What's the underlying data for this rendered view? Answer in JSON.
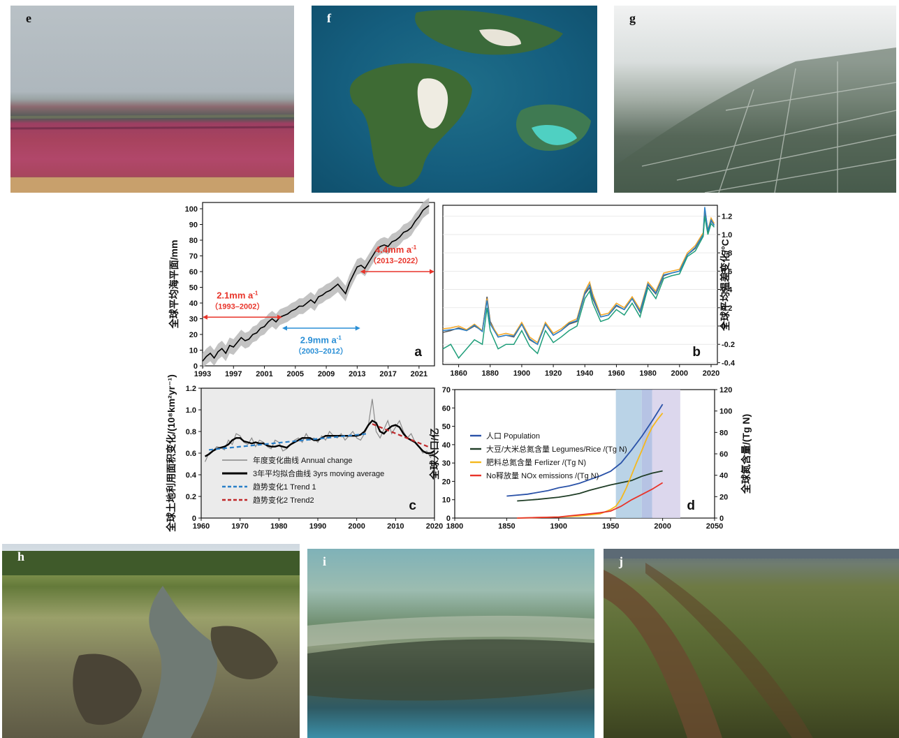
{
  "photos": [
    {
      "id": "e",
      "label": "e"
    },
    {
      "id": "f",
      "label": "f"
    },
    {
      "id": "g",
      "label": "g"
    },
    {
      "id": "h",
      "label": "h"
    },
    {
      "id": "i",
      "label": "i"
    },
    {
      "id": "j",
      "label": "j"
    }
  ],
  "colors": {
    "black": "#111111",
    "gray_band": "#b8b8b8",
    "red": "#e8342a",
    "blue": "#2a8fd6",
    "panel_c_bg": "#ebebeb",
    "navy": "#2a52a8",
    "dark_green": "#1f3d26",
    "yellow": "#f5b81c",
    "band_blue": "#aecbe3",
    "band_purple": "#cfc9e6"
  },
  "chart_data": [
    {
      "panel": "a",
      "type": "line",
      "ylabel": "全球平均海平面/mm",
      "xlim": [
        1993,
        2023
      ],
      "ylim": [
        0,
        104
      ],
      "xticks": [
        1993,
        1997,
        2001,
        2005,
        2009,
        2013,
        2017,
        2021
      ],
      "yticks": [
        0,
        10,
        20,
        30,
        40,
        50,
        60,
        70,
        80,
        90,
        100
      ],
      "series": [
        {
          "x": [
            1993,
            1993.5,
            1994,
            1994.5,
            1995,
            1995.5,
            1996,
            1996.5,
            1997,
            1997.5,
            1998,
            1998.5,
            1999,
            1999.5,
            2000,
            2000.5,
            2001,
            2001.5,
            2002,
            2002.5,
            2003,
            2003.5,
            2004,
            2004.5,
            2005,
            2005.5,
            2006,
            2006.5,
            2007,
            2007.5,
            2008,
            2008.5,
            2009,
            2009.5,
            2010,
            2010.5,
            2011,
            2011.5,
            2012,
            2012.5,
            2013,
            2013.5,
            2014,
            2014.5,
            2015,
            2015.5,
            2016,
            2016.5,
            2017,
            2017.5,
            2018,
            2018.5,
            2019,
            2019.5,
            2020,
            2020.5,
            2021,
            2021.5,
            2022,
            2022.3
          ],
          "values": [
            3,
            6,
            8,
            5,
            9,
            11,
            8,
            13,
            12,
            15,
            18,
            16,
            17,
            20,
            21,
            24,
            25,
            28,
            30,
            28,
            31,
            32,
            33,
            35,
            36,
            38,
            38,
            40,
            42,
            40,
            44,
            45,
            47,
            48,
            50,
            52,
            49,
            46,
            53,
            58,
            63,
            64,
            62,
            66,
            70,
            74,
            76,
            77,
            76,
            79,
            80,
            82,
            85,
            86,
            88,
            92,
            95,
            99,
            101,
            102
          ]
        }
      ],
      "annotations": [
        {
          "text": "2.1mm a",
          "superscript": "-1",
          "period": "（1993–2002）",
          "color": "#e8342a",
          "x_range": [
            1993,
            2003.3
          ]
        },
        {
          "text": "2.9mm a",
          "superscript": "-1",
          "period": "（2003–2012）",
          "color": "#2a8fd6",
          "x_range": [
            2003.3,
            2013.4
          ]
        },
        {
          "text": "4.4mm a",
          "superscript": "-1",
          "period": "（2013–2022）",
          "color": "#e8342a",
          "x_range": [
            2013.4,
            2023
          ]
        }
      ],
      "letter": "a"
    },
    {
      "panel": "b",
      "type": "line",
      "ylabel": "全球平均温差变化/°C",
      "xlim": [
        1850,
        2024
      ],
      "ylim": [
        -0.42,
        1.32
      ],
      "xticks": [
        1860,
        1880,
        1900,
        1920,
        1940,
        1960,
        1980,
        2000,
        2020
      ],
      "yticks": [
        -0.4,
        -0.2,
        0,
        0.2,
        0.4,
        0.6,
        0.8,
        1.0,
        1.2
      ],
      "ytick_labels": [
        "-0.4",
        "-0.2",
        "0",
        "0.2",
        "0.4",
        "0.6",
        "0.8",
        "1.0",
        "1.2"
      ],
      "grid": true,
      "x": [
        1850,
        1855,
        1860,
        1865,
        1870,
        1875,
        1878,
        1880,
        1885,
        1890,
        1895,
        1900,
        1905,
        1910,
        1915,
        1920,
        1925,
        1930,
        1935,
        1940,
        1943,
        1945,
        1950,
        1955,
        1960,
        1965,
        1970,
        1975,
        1980,
        1985,
        1990,
        1995,
        2000,
        2005,
        2010,
        2015,
        2016,
        2018,
        2020,
        2022
      ],
      "series": [
        {
          "color": "#555555",
          "values": [
            -0.07,
            -0.05,
            -0.02,
            -0.05,
            0.0,
            -0.05,
            0.32,
            0.05,
            -0.12,
            -0.1,
            -0.12,
            0.02,
            -0.15,
            -0.2,
            0.02,
            -0.1,
            -0.05,
            0.02,
            0.05,
            0.35,
            0.42,
            0.3,
            0.1,
            0.12,
            0.22,
            0.18,
            0.3,
            0.15,
            0.45,
            0.35,
            0.55,
            0.58,
            0.6,
            0.78,
            0.85,
            1.0,
            1.25,
            1.02,
            1.15,
            1.1
          ]
        },
        {
          "color": "#f5a623",
          "values": [
            -0.03,
            -0.02,
            0.0,
            -0.04,
            0.02,
            -0.05,
            0.3,
            0.03,
            -0.1,
            -0.08,
            -0.1,
            0.04,
            -0.12,
            -0.18,
            0.04,
            -0.08,
            -0.03,
            0.04,
            0.08,
            0.38,
            0.48,
            0.35,
            0.12,
            0.14,
            0.25,
            0.2,
            0.32,
            0.18,
            0.48,
            0.38,
            0.58,
            0.6,
            0.62,
            0.8,
            0.88,
            1.02,
            1.28,
            1.05,
            1.18,
            1.12
          ]
        },
        {
          "color": "#2a7fc8",
          "values": [
            -0.05,
            -0.04,
            -0.03,
            -0.05,
            0.01,
            -0.06,
            0.28,
            0.02,
            -0.12,
            -0.1,
            -0.11,
            0.02,
            -0.14,
            -0.2,
            0.02,
            -0.1,
            -0.05,
            0.03,
            0.06,
            0.36,
            0.45,
            0.32,
            0.1,
            0.12,
            0.23,
            0.18,
            0.3,
            0.16,
            0.46,
            0.36,
            0.56,
            0.58,
            0.6,
            0.78,
            0.86,
            1.0,
            1.3,
            1.04,
            1.16,
            1.1
          ]
        },
        {
          "color": "#1f9e7a",
          "values": [
            -0.25,
            -0.2,
            -0.35,
            -0.25,
            -0.15,
            -0.2,
            0.2,
            -0.05,
            -0.25,
            -0.2,
            -0.2,
            -0.05,
            -0.22,
            -0.3,
            -0.05,
            -0.18,
            -0.12,
            -0.05,
            0.0,
            0.3,
            0.38,
            0.25,
            0.05,
            0.08,
            0.18,
            0.12,
            0.25,
            0.1,
            0.42,
            0.3,
            0.52,
            0.55,
            0.57,
            0.76,
            0.82,
            0.98,
            1.2,
            1.0,
            1.12,
            1.08
          ]
        }
      ],
      "letter": "b"
    },
    {
      "panel": "c",
      "type": "line",
      "ylabel": "全球土地利用面积变化/(10⁸km²yr⁻¹)",
      "xlim": [
        1960,
        2020
      ],
      "ylim": [
        0,
        1.2
      ],
      "xticks": [
        1960,
        1970,
        1980,
        1990,
        2000,
        2010,
        2020
      ],
      "yticks": [
        0,
        0.2,
        0.4,
        0.6,
        0.8,
        1.0,
        1.2
      ],
      "ytick_labels": [
        "0",
        "0.2",
        "0.4",
        "0.6",
        "0.8",
        "1.0",
        "1.2"
      ],
      "annual": {
        "x": [
          1961,
          1962,
          1963,
          1964,
          1965,
          1966,
          1967,
          1968,
          1969,
          1970,
          1971,
          1972,
          1973,
          1974,
          1975,
          1976,
          1977,
          1978,
          1979,
          1980,
          1981,
          1982,
          1983,
          1984,
          1985,
          1986,
          1987,
          1988,
          1989,
          1990,
          1991,
          1992,
          1993,
          1994,
          1995,
          1996,
          1997,
          1998,
          1999,
          2000,
          2001,
          2002,
          2003,
          2004,
          2005,
          2006,
          2007,
          2008,
          2009,
          2010,
          2011,
          2012,
          2013,
          2014,
          2015,
          2016,
          2017,
          2018,
          2019,
          2020
        ],
        "values": [
          0.52,
          0.6,
          0.62,
          0.66,
          0.65,
          0.63,
          0.72,
          0.68,
          0.78,
          0.76,
          0.7,
          0.68,
          0.74,
          0.66,
          0.72,
          0.7,
          0.66,
          0.64,
          0.72,
          0.7,
          0.62,
          0.64,
          0.68,
          0.72,
          0.74,
          0.7,
          0.78,
          0.72,
          0.74,
          0.7,
          0.76,
          0.72,
          0.8,
          0.76,
          0.74,
          0.78,
          0.72,
          0.76,
          0.8,
          0.74,
          0.72,
          0.78,
          0.86,
          1.1,
          0.8,
          0.74,
          0.82,
          0.9,
          0.78,
          0.84,
          0.9,
          0.8,
          0.74,
          0.78,
          0.7,
          0.66,
          0.6,
          0.62,
          0.56,
          0.64
        ]
      },
      "moving_avg": {
        "x": [
          1961,
          1962,
          1963,
          1964,
          1965,
          1966,
          1967,
          1968,
          1969,
          1970,
          1971,
          1972,
          1973,
          1974,
          1975,
          1976,
          1977,
          1978,
          1979,
          1980,
          1981,
          1982,
          1983,
          1984,
          1985,
          1986,
          1987,
          1988,
          1989,
          1990,
          1991,
          1992,
          1993,
          1994,
          1995,
          1996,
          1997,
          1998,
          1999,
          2000,
          2001,
          2002,
          2003,
          2004,
          2005,
          2006,
          2007,
          2008,
          2009,
          2010,
          2011,
          2012,
          2013,
          2014,
          2015,
          2016,
          2017,
          2018,
          2019,
          2020
        ],
        "values": [
          0.57,
          0.59,
          0.62,
          0.64,
          0.65,
          0.66,
          0.68,
          0.72,
          0.74,
          0.74,
          0.71,
          0.7,
          0.69,
          0.7,
          0.69,
          0.69,
          0.67,
          0.66,
          0.66,
          0.67,
          0.66,
          0.65,
          0.68,
          0.7,
          0.72,
          0.74,
          0.74,
          0.74,
          0.72,
          0.72,
          0.74,
          0.76,
          0.76,
          0.76,
          0.76,
          0.76,
          0.76,
          0.76,
          0.76,
          0.76,
          0.77,
          0.8,
          0.86,
          0.9,
          0.88,
          0.8,
          0.78,
          0.82,
          0.85,
          0.86,
          0.84,
          0.78,
          0.74,
          0.72,
          0.7,
          0.66,
          0.62,
          0.6,
          0.6,
          0.62
        ]
      },
      "trend1": {
        "x": [
          1962,
          2003
        ],
        "values": [
          0.63,
          0.78
        ]
      },
      "trend2": {
        "x": [
          2004,
          2019
        ],
        "values": [
          0.87,
          0.65
        ]
      },
      "legend": [
        {
          "label": "年度变化曲线 Annual change",
          "color": "#888888",
          "style": "solid"
        },
        {
          "label": "3年平均拟合曲线 3yrs moving average",
          "color": "#000000",
          "style": "solid-thick"
        },
        {
          "label": "趋势变化1 Trend 1",
          "color": "#2a7fc8",
          "style": "dashed"
        },
        {
          "label": "趋势变化2 Trend2",
          "color": "#c0282a",
          "style": "dashed"
        }
      ],
      "letter": "c"
    },
    {
      "panel": "d",
      "type": "line",
      "ylabel_left": "全球人口/亿",
      "ylabel_right": "全球氮含量/(Tg N)",
      "xlim": [
        1800,
        2050
      ],
      "ylim_left": [
        0,
        70
      ],
      "ylim_right": [
        0,
        120
      ],
      "xticks": [
        1800,
        1850,
        1900,
        1950,
        2000,
        2050
      ],
      "yticks_left": [
        0,
        10,
        20,
        30,
        40,
        50,
        60,
        70
      ],
      "yticks_right": [
        0,
        20,
        40,
        60,
        80,
        100,
        120
      ],
      "bands": [
        {
          "x_range": [
            1955,
            1980
          ],
          "color": "#aecbe3"
        },
        {
          "x_range": [
            1980,
            1990
          ],
          "color": "#a9b9df"
        },
        {
          "x_range": [
            1990,
            2017
          ],
          "color": "#d6d0ea"
        }
      ],
      "series": [
        {
          "name": "人口 Population",
          "axis": "left",
          "color": "#2a52a8",
          "x": [
            1850,
            1870,
            1890,
            1900,
            1910,
            1920,
            1930,
            1940,
            1950,
            1960,
            1970,
            1980,
            1990,
            2000
          ],
          "values": [
            12,
            13,
            15,
            16.5,
            17.5,
            19,
            21,
            23,
            25.5,
            30,
            37,
            44.5,
            53,
            62
          ]
        },
        {
          "name": "大豆/大米总氮含量 Legumes/Rice /(Tg N)",
          "axis": "right",
          "color": "#1f3d26",
          "x": [
            1860,
            1880,
            1900,
            1910,
            1920,
            1930,
            1940,
            1950,
            1960,
            1970,
            1980,
            1990,
            2000
          ],
          "values": [
            16,
            17.5,
            19.5,
            21,
            23,
            26,
            28.5,
            31,
            33,
            35,
            39,
            42,
            44
          ]
        },
        {
          "name": "肥料总氮含量 Ferlizer /(Tg N)",
          "axis": "right",
          "color": "#f5b81c",
          "x": [
            1860,
            1900,
            1920,
            1930,
            1940,
            1945,
            1950,
            1955,
            1960,
            1965,
            1970,
            1975,
            1980,
            1985,
            1990,
            1995,
            2000
          ],
          "values": [
            0,
            1,
            2,
            3,
            4,
            6,
            8,
            11,
            18,
            28,
            40,
            52,
            63,
            75,
            85,
            92,
            98
          ]
        },
        {
          "name": "No释放量 NOx emissions /(Tg N)",
          "axis": "right",
          "color": "#e8342a",
          "x": [
            1860,
            1880,
            1900,
            1910,
            1920,
            1930,
            1940,
            1950,
            1960,
            1970,
            1980,
            1990,
            2000
          ],
          "values": [
            0,
            0.5,
            1,
            2,
            3,
            4,
            5,
            6.5,
            11,
            17,
            22,
            27,
            33
          ]
        }
      ],
      "letter": "d"
    }
  ]
}
